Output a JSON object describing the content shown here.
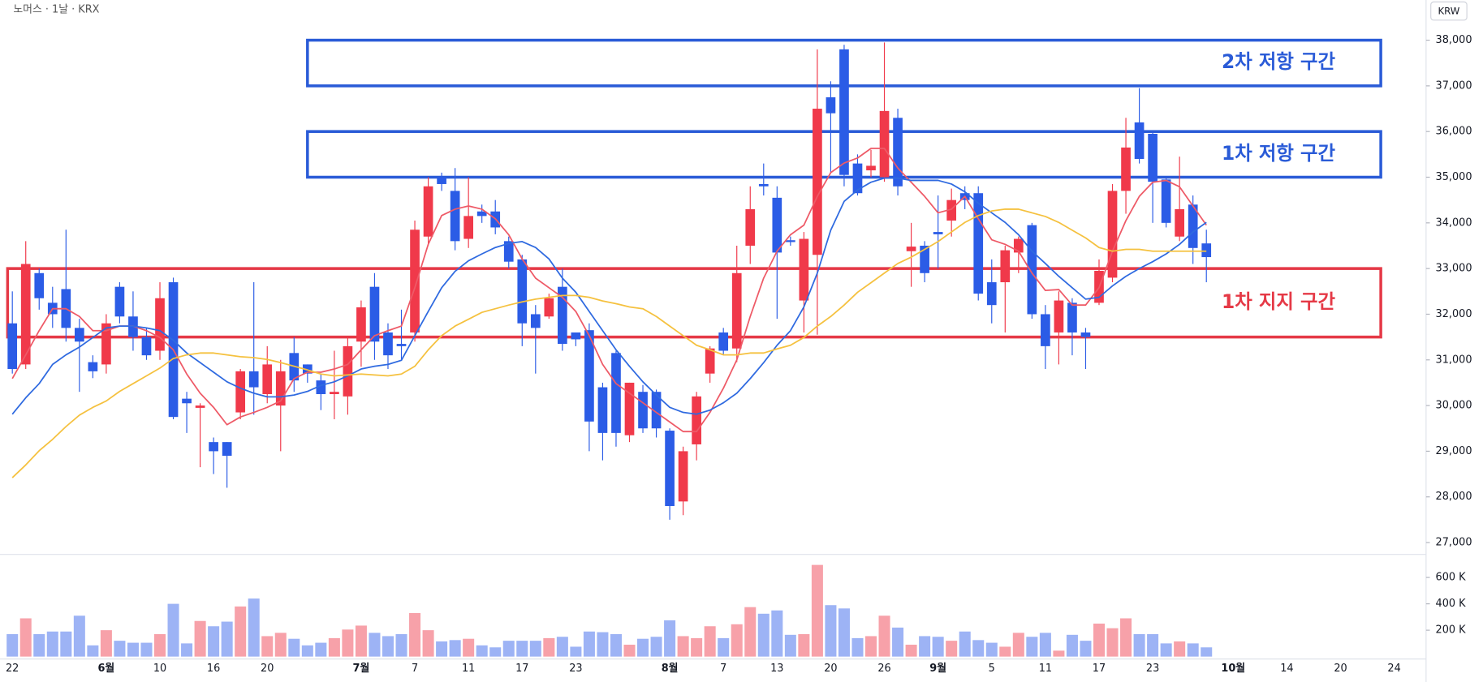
{
  "chart_data": {
    "type": "candlestick",
    "symbol_title": "노머스 · 1날 · KRX",
    "currency": "KRW",
    "up_color": "#f0394a",
    "down_color": "#2b5ce6",
    "volume_up_color": "#f7a1a9",
    "volume_down_color": "#9db3f5",
    "categories": [
      "22",
      null,
      null,
      null,
      null,
      null,
      null,
      "6월",
      null,
      null,
      null,
      "10",
      null,
      null,
      null,
      "16",
      null,
      null,
      null,
      "20",
      null,
      null,
      null,
      null,
      null,
      null,
      "7월",
      null,
      null,
      null,
      "7",
      null,
      null,
      null,
      "11",
      null,
      null,
      null,
      "17",
      null,
      null,
      null,
      "23",
      null,
      null,
      null,
      null,
      null,
      null,
      "8월",
      null,
      null,
      null,
      "7",
      null,
      null,
      null,
      "13",
      null,
      null,
      null,
      "20",
      null,
      null,
      null,
      "26",
      null,
      null,
      null,
      "9월",
      null,
      null,
      null,
      "5",
      null,
      null,
      null,
      "11",
      null,
      null,
      null,
      "17",
      null,
      null,
      null,
      "23",
      null,
      null,
      null,
      null,
      null,
      "10월",
      null,
      null,
      null,
      "14",
      null,
      null,
      null,
      "20",
      null,
      null,
      null,
      "24"
    ],
    "open": [
      31800,
      30900,
      32900,
      32250,
      32550,
      31700,
      30950,
      30900,
      32600,
      31950,
      31500,
      31200,
      32700,
      30150,
      29950,
      29200,
      29200,
      29850,
      30750,
      30250,
      30000,
      31150,
      30900,
      30550,
      30250,
      30200,
      31400,
      32600,
      31600,
      31350,
      31600,
      33700,
      35000,
      34700,
      33650,
      34250,
      34250,
      33600,
      33200,
      32000,
      31950,
      32600,
      31600,
      31650,
      30400,
      31150,
      29350,
      30300,
      30300,
      29450,
      27900,
      29150,
      30700,
      31600,
      31250,
      33500,
      34850,
      34550,
      33620,
      32300,
      33300,
      36750,
      37800,
      35300,
      35150,
      35000,
      36300,
      33380,
      33500,
      33800,
      34050,
      34650,
      34650,
      32700,
      32700,
      33350,
      33950,
      32000,
      31600,
      32250,
      31600,
      32250,
      32800,
      34700,
      36200,
      35950,
      34950,
      33700,
      34400,
      33550,
      null,
      null,
      null,
      null,
      null,
      null,
      null,
      null,
      null,
      null,
      null,
      null,
      null,
      null
    ],
    "high": [
      32500,
      33600,
      33000,
      32600,
      33850,
      31900,
      31100,
      32000,
      32700,
      32500,
      31700,
      32700,
      32800,
      30300,
      30050,
      29300,
      29200,
      30800,
      32700,
      31300,
      31000,
      31500,
      30900,
      30700,
      31200,
      31500,
      32300,
      32900,
      31800,
      32100,
      34050,
      35000,
      35100,
      35200,
      35000,
      34400,
      34500,
      33700,
      33300,
      32200,
      32450,
      33000,
      31600,
      31800,
      30500,
      31200,
      30500,
      30450,
      30350,
      29500,
      29100,
      30300,
      31300,
      31700,
      33500,
      34800,
      35300,
      34800,
      33700,
      33800,
      37800,
      37100,
      37900,
      35500,
      35600,
      37950,
      36500,
      34000,
      33600,
      34600,
      34750,
      34800,
      34800,
      33200,
      33500,
      33700,
      34000,
      32200,
      32500,
      32350,
      31700,
      33200,
      34850,
      36300,
      36950,
      36000,
      35000,
      35450,
      34600,
      33850,
      null,
      null,
      null,
      null,
      null,
      null,
      null,
      null,
      null,
      null,
      null,
      null,
      null,
      null
    ],
    "low": [
      30700,
      30800,
      32100,
      31700,
      31400,
      30300,
      30600,
      30700,
      31800,
      31200,
      31000,
      31000,
      29700,
      29400,
      28650,
      28500,
      28200,
      29700,
      29800,
      30050,
      29000,
      30300,
      30500,
      29900,
      29700,
      29800,
      30850,
      31000,
      30800,
      31000,
      31400,
      33500,
      34700,
      33400,
      33450,
      34000,
      33750,
      33000,
      31300,
      30700,
      31900,
      31200,
      31300,
      29000,
      28800,
      29100,
      29200,
      29400,
      29300,
      27500,
      27600,
      28800,
      30500,
      31100,
      30950,
      33100,
      34600,
      31900,
      33500,
      31600,
      31550,
      35100,
      34800,
      34600,
      35000,
      34900,
      34600,
      32600,
      32700,
      33000,
      33700,
      34300,
      32300,
      31800,
      31600,
      32900,
      31900,
      30800,
      30900,
      31100,
      30800,
      32200,
      32700,
      34200,
      35300,
      34000,
      33900,
      33600,
      33100,
      32700,
      null,
      null,
      null,
      null,
      null,
      null,
      null,
      null,
      null,
      null,
      null,
      null,
      null,
      null
    ],
    "close": [
      30800,
      33100,
      32350,
      32000,
      31700,
      31400,
      30750,
      31800,
      31950,
      31500,
      31100,
      32350,
      29750,
      30050,
      30000,
      29000,
      28900,
      30750,
      30400,
      30900,
      30750,
      30550,
      30700,
      30250,
      30300,
      31300,
      32150,
      31400,
      31100,
      31300,
      33850,
      34800,
      34850,
      33600,
      34150,
      34150,
      33900,
      33150,
      31800,
      31700,
      32350,
      31350,
      31450,
      29650,
      29400,
      29400,
      30500,
      29500,
      29500,
      27800,
      29000,
      30200,
      31250,
      31200,
      32900,
      34300,
      34800,
      33350,
      33580,
      33650,
      36500,
      36400,
      35050,
      34650,
      35250,
      36450,
      34800,
      33480,
      32900,
      33750,
      34500,
      34500,
      32450,
      32200,
      33400,
      33650,
      32000,
      31300,
      32300,
      31600,
      31500,
      32950,
      34700,
      35650,
      35400,
      34900,
      34000,
      34300,
      33450,
      33250,
      null,
      null,
      null,
      null,
      null,
      null,
      null,
      null,
      null,
      null,
      null,
      null,
      null,
      null
    ],
    "volume": [
      170000,
      290000,
      170000,
      190000,
      190000,
      310000,
      85000,
      200000,
      120000,
      105000,
      105000,
      170000,
      400000,
      100000,
      270000,
      230000,
      265000,
      380000,
      440000,
      155000,
      180000,
      135000,
      85000,
      105000,
      140000,
      205000,
      235000,
      180000,
      155000,
      170000,
      330000,
      200000,
      115000,
      125000,
      135000,
      85000,
      70000,
      120000,
      120000,
      120000,
      140000,
      150000,
      75000,
      190000,
      185000,
      170000,
      90000,
      135000,
      150000,
      275000,
      155000,
      140000,
      230000,
      140000,
      245000,
      375000,
      325000,
      350000,
      165000,
      170000,
      695000,
      390000,
      365000,
      140000,
      155000,
      310000,
      220000,
      90000,
      155000,
      150000,
      120000,
      190000,
      125000,
      105000,
      75000,
      180000,
      150000,
      180000,
      45000,
      165000,
      120000,
      250000,
      215000,
      290000,
      170000,
      170000,
      100000,
      115000,
      100000,
      70000,
      null,
      null,
      null,
      null,
      null,
      null,
      null,
      null,
      null,
      null,
      null,
      null,
      null,
      null
    ],
    "moving_averages": [
      {
        "color": "#ee5a67",
        "values": [
          30590,
          31110,
          31640,
          32120,
          32120,
          31950,
          31640,
          31640,
          31740,
          31740,
          31640,
          31490,
          31220,
          30690,
          30270,
          29960,
          29580,
          29750,
          29850,
          29960,
          30100,
          30590,
          30730,
          30730,
          30800,
          30900,
          31220,
          31530,
          31640,
          31740,
          32580,
          33530,
          34160,
          34300,
          34370,
          34300,
          34090,
          33740,
          33210,
          32790,
          32580,
          32370,
          32060,
          31530,
          30900,
          30480,
          30270,
          30060,
          29850,
          29640,
          29430,
          29430,
          29850,
          30380,
          31000,
          31950,
          32790,
          33380,
          33740,
          33950,
          34580,
          35100,
          35310,
          35420,
          35630,
          35630,
          35200,
          34890,
          34580,
          34220,
          34300,
          34580,
          34090,
          33630,
          33530,
          33380,
          32900,
          32520,
          32540,
          32200,
          32200,
          32580,
          33380,
          34050,
          34580,
          34890,
          34930,
          34790,
          34370,
          33950,
          null,
          null,
          null,
          null,
          null,
          null,
          null,
          null,
          null,
          null,
          null,
          null,
          null,
          null
        ]
      },
      {
        "color": "#2f6ae0",
        "values": [
          29810,
          30170,
          30480,
          30900,
          31110,
          31280,
          31490,
          31700,
          31740,
          31740,
          31700,
          31640,
          31430,
          31150,
          30940,
          30730,
          30520,
          30380,
          30270,
          30190,
          30190,
          30230,
          30310,
          30440,
          30520,
          30650,
          30800,
          30860,
          30900,
          30990,
          31530,
          32060,
          32580,
          32940,
          33170,
          33320,
          33460,
          33550,
          33590,
          33460,
          33210,
          32790,
          32480,
          32060,
          31640,
          31220,
          30860,
          30520,
          30230,
          29960,
          29850,
          29810,
          29900,
          30060,
          30270,
          30590,
          30940,
          31320,
          31640,
          32160,
          32900,
          33840,
          34470,
          34720,
          34890,
          34980,
          34980,
          34930,
          34930,
          34930,
          34850,
          34680,
          34430,
          34220,
          34010,
          33740,
          33380,
          33110,
          32830,
          32580,
          32330,
          32370,
          32620,
          32830,
          33000,
          33150,
          33320,
          33530,
          33800,
          34010,
          null,
          null,
          null,
          null,
          null,
          null,
          null,
          null,
          null,
          null,
          null,
          null,
          null,
          null
        ]
      },
      {
        "color": "#f5c13f",
        "values": [
          28420,
          28700,
          29010,
          29260,
          29540,
          29790,
          29960,
          30100,
          30310,
          30480,
          30650,
          30820,
          31030,
          31110,
          31150,
          31150,
          31110,
          31070,
          31050,
          31010,
          30940,
          30860,
          30780,
          30690,
          30650,
          30670,
          30690,
          30670,
          30650,
          30690,
          30860,
          31220,
          31530,
          31740,
          31890,
          32040,
          32120,
          32200,
          32270,
          32330,
          32370,
          32410,
          32410,
          32370,
          32290,
          32230,
          32160,
          32120,
          31950,
          31740,
          31530,
          31320,
          31220,
          31110,
          31110,
          31150,
          31150,
          31240,
          31320,
          31490,
          31740,
          31950,
          32200,
          32480,
          32690,
          32900,
          33110,
          33250,
          33420,
          33590,
          33800,
          34010,
          34160,
          34260,
          34300,
          34300,
          34220,
          34140,
          34010,
          33840,
          33670,
          33460,
          33380,
          33420,
          33420,
          33380,
          33380,
          33380,
          33380,
          33380,
          null,
          null,
          null,
          null,
          null,
          null,
          null,
          null,
          null,
          null,
          null,
          null,
          null,
          null
        ]
      }
    ],
    "zones": [
      {
        "label": "2차 저항 구간",
        "low": 37000,
        "high": 38000,
        "start": 22,
        "end": 102,
        "color": "#2a5bd7"
      },
      {
        "label": "1차 저항 구간",
        "low": 35000,
        "high": 36000,
        "start": 22,
        "end": 102,
        "color": "#2a5bd7"
      },
      {
        "label": "1차 지지 구간",
        "low": 31500,
        "high": 33000,
        "start": 0,
        "end": 102,
        "color": "#e53946"
      }
    ],
    "ylim": [
      26740,
      38880
    ],
    "yticks": [
      {
        "value": 27000,
        "label": "27,000"
      },
      {
        "value": 28000,
        "label": "28,000"
      },
      {
        "value": 29000,
        "label": "29,000"
      },
      {
        "value": 30000,
        "label": "30,000"
      },
      {
        "value": 31000,
        "label": "31,000"
      },
      {
        "value": 32000,
        "label": "32,000"
      },
      {
        "value": 33000,
        "label": "33,000"
      },
      {
        "value": 34000,
        "label": "34,000"
      },
      {
        "value": 35000,
        "label": "35,000"
      },
      {
        "value": 36000,
        "label": "36,000"
      },
      {
        "value": 37000,
        "label": "37,000"
      },
      {
        "value": 38000,
        "label": "38,000"
      }
    ],
    "volume_ylim": [
      0,
      760000
    ],
    "volume_yticks": [
      {
        "value": 200000,
        "label": "200 K"
      },
      {
        "value": 400000,
        "label": "400 K"
      },
      {
        "value": 600000,
        "label": "600 K"
      }
    ]
  }
}
